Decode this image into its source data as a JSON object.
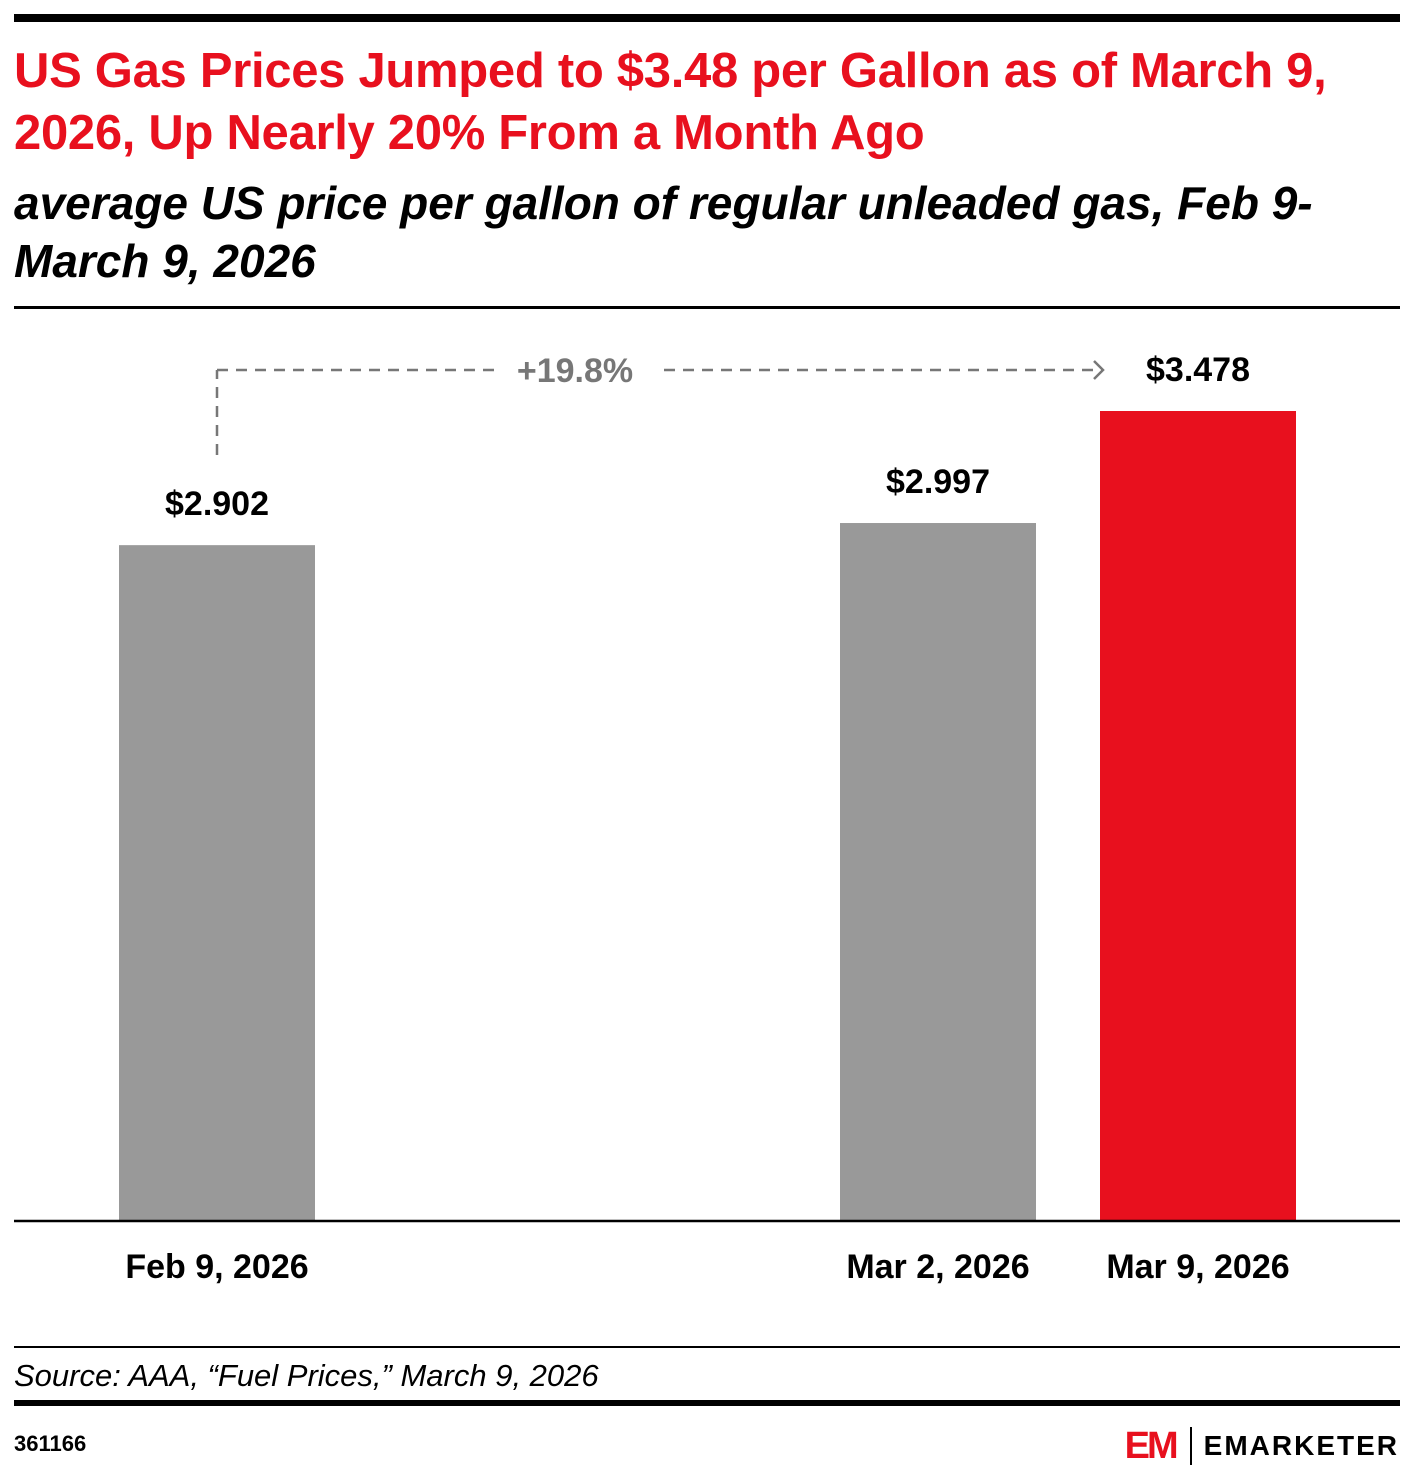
{
  "header": {
    "title": "US Gas Prices Jumped to $3.48 per Gallon as of March 9, 2026, Up Nearly 20% From a Month Ago",
    "subtitle": "average US price per gallon of regular unleaded gas, Feb 9-March 9, 2026"
  },
  "chart_data": {
    "type": "bar",
    "categories": [
      "Feb 9, 2026",
      "Mar 2, 2026",
      "Mar 9, 2026"
    ],
    "values": [
      2.902,
      2.997,
      3.478
    ],
    "value_labels": [
      "$2.902",
      "$2.997",
      "$3.478"
    ],
    "bar_colors": [
      "#999999",
      "#999999",
      "#e8101e"
    ],
    "annotation": {
      "text": "+19.8%",
      "from": "Feb 9, 2026",
      "to": "Mar 9, 2026"
    },
    "title": "",
    "xlabel": "",
    "ylabel": "",
    "ylim": [
      0,
      3.478
    ],
    "grid": false
  },
  "footer": {
    "source": "Source: AAA, “Fuel Prices,” March 9, 2026",
    "chart_id": "361166",
    "logo_mark": "EM",
    "logo_word": "EMARKETER"
  },
  "colors": {
    "accent": "#e8101e",
    "neutral_bar": "#999999",
    "annotation": "#777777",
    "text": "#000000"
  }
}
